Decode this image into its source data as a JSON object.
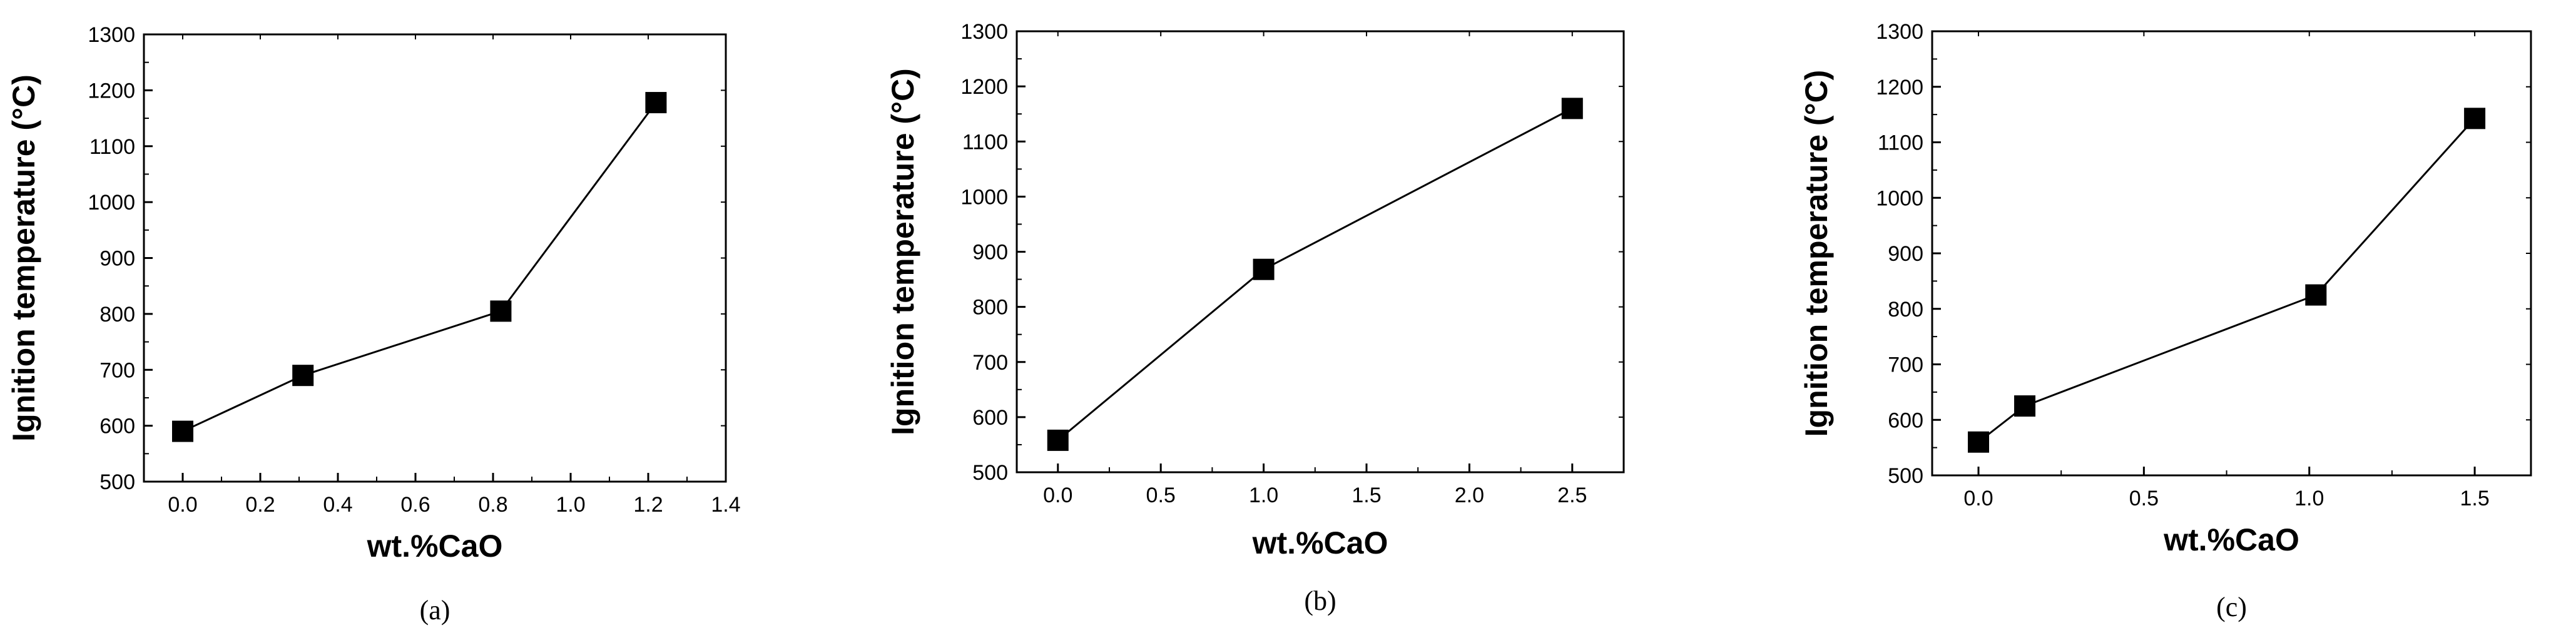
{
  "chart_data": [
    {
      "type": "line",
      "panel_label": "(a)",
      "xlabel": "wt.%CaO",
      "ylabel": "Ignition temperature (°C)",
      "xlim": [
        -0.1,
        1.4
      ],
      "ylim": [
        500,
        1300
      ],
      "xticks": [
        0.0,
        0.2,
        0.4,
        0.6,
        0.8,
        1.0,
        1.2,
        1.4
      ],
      "xtick_labels": [
        "0.0",
        "0.2",
        "0.4",
        "0.6",
        "0.8",
        "1.0",
        "1.2",
        "1.4"
      ],
      "yticks": [
        500,
        600,
        700,
        800,
        900,
        1000,
        1100,
        1200,
        1300
      ],
      "ytick_labels": [
        "500",
        "600",
        "700",
        "800",
        "900",
        "1000",
        "1100",
        "1200",
        "1300"
      ],
      "marker": "square",
      "color": "#000000",
      "x": [
        0.0,
        0.31,
        0.82,
        1.22
      ],
      "y": [
        590,
        690,
        805,
        1178
      ]
    },
    {
      "type": "line",
      "panel_label": "(b)",
      "xlabel": "wt.%CaO",
      "ylabel": "Ignition temperature (°C)",
      "xlim": [
        -0.2,
        2.75
      ],
      "ylim": [
        500,
        1300
      ],
      "xticks": [
        0.0,
        0.5,
        1.0,
        1.5,
        2.0,
        2.5
      ],
      "xtick_labels": [
        "0.0",
        "0.5",
        "1.0",
        "1.5",
        "2.0",
        "2.5"
      ],
      "yticks": [
        500,
        600,
        700,
        800,
        900,
        1000,
        1100,
        1200,
        1300
      ],
      "ytick_labels": [
        "500",
        "600",
        "700",
        "800",
        "900",
        "1000",
        "1100",
        "1200",
        "1300"
      ],
      "marker": "square",
      "color": "#000000",
      "x": [
        0.0,
        1.0,
        2.5
      ],
      "y": [
        558,
        868,
        1160
      ]
    },
    {
      "type": "line",
      "panel_label": "(c)",
      "xlabel": "wt.%CaO",
      "ylabel": "Ignition temperature (°C)",
      "xlim": [
        -0.14,
        1.67
      ],
      "ylim": [
        500,
        1300
      ],
      "xticks": [
        0.0,
        0.5,
        1.0,
        1.5
      ],
      "xtick_labels": [
        "0.0",
        "0.5",
        "1.0",
        "1.5"
      ],
      "yticks": [
        500,
        600,
        700,
        800,
        900,
        1000,
        1100,
        1200,
        1300
      ],
      "ytick_labels": [
        "500",
        "600",
        "700",
        "800",
        "900",
        "1000",
        "1100",
        "1200",
        "1300"
      ],
      "marker": "square",
      "color": "#000000",
      "x": [
        0.0,
        0.14,
        1.02,
        1.5
      ],
      "y": [
        560,
        625,
        825,
        1143
      ]
    }
  ]
}
